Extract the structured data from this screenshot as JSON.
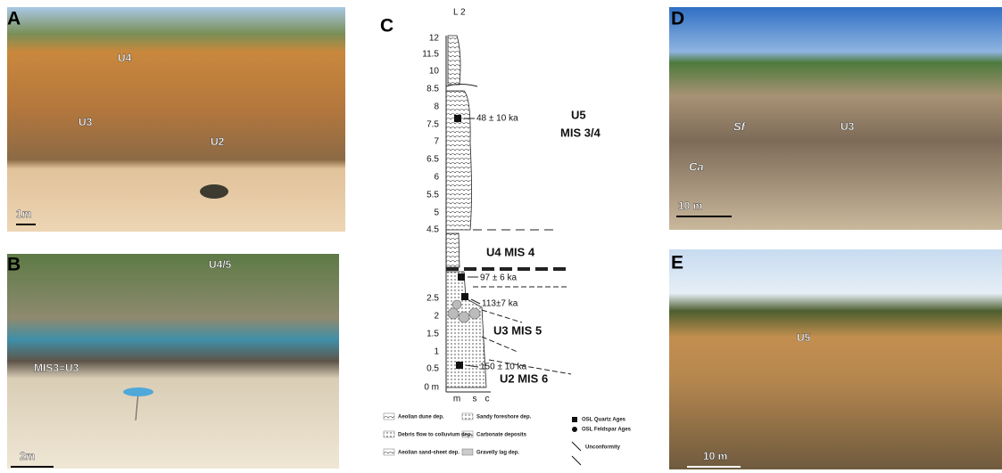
{
  "panels": {
    "A": {
      "label": "A",
      "units": [
        "U4",
        "U3",
        "U2"
      ],
      "scale": "1m"
    },
    "B": {
      "label": "B",
      "units": [
        "U4/5",
        "MIS3=U3"
      ],
      "scale": "2m"
    },
    "C": {
      "label": "C",
      "section": "L 2",
      "depths": [
        "12",
        "11.5",
        "10",
        "8.5",
        "8",
        "7.5",
        "7",
        "6.5",
        "6",
        "5.5",
        "5",
        "4.5",
        "2.5",
        "2",
        "1.5",
        "1",
        "0.5",
        "0 m"
      ],
      "grain_sizes": [
        "m",
        "s",
        "c"
      ],
      "ages": [
        "48 ± 10 ka",
        "97 ± 6 ka",
        "113±7 ka",
        "150 ± 10 ka"
      ],
      "units": [
        "U5",
        "MIS 3/4",
        "U4  MIS 4",
        "U3  MIS 5",
        "U2  MIS 6"
      ],
      "legend": [
        "Aeolian dune dep.",
        "Debris flow to colluvium dep.",
        "Aeolian sand-sheet dep.",
        "Sandy foreshore dep.",
        "Carbonate deposits",
        "Gravelly lag dep.",
        "OSL Quartz Ages",
        "OSL Feldspar Ages",
        "Unconformity"
      ]
    },
    "D": {
      "label": "D",
      "units": [
        "Sf",
        "U3",
        "Ca"
      ],
      "scale": "10 m"
    },
    "E": {
      "label": "E",
      "units": [
        "U5"
      ],
      "scale": "10 m"
    }
  }
}
